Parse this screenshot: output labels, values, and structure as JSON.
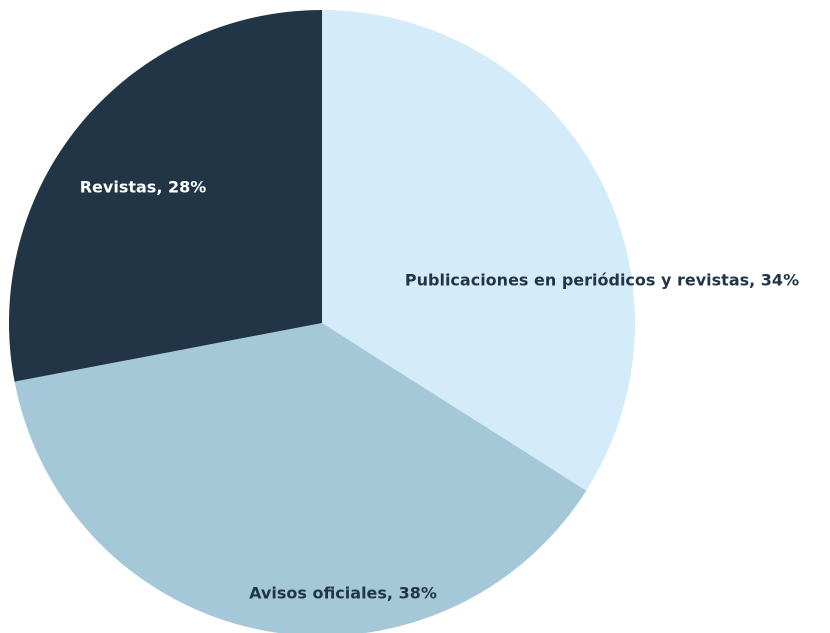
{
  "chart_data": {
    "type": "pie",
    "values": [
      34,
      38,
      28
    ],
    "value_labels": [
      "Publicaciones en periódicos y revistas, 34%",
      "Avisos oficiales, 38%",
      "Revistas, 28%"
    ],
    "colors": [
      "#d4ebf9",
      "#a5c8d8",
      "#213547"
    ]
  }
}
